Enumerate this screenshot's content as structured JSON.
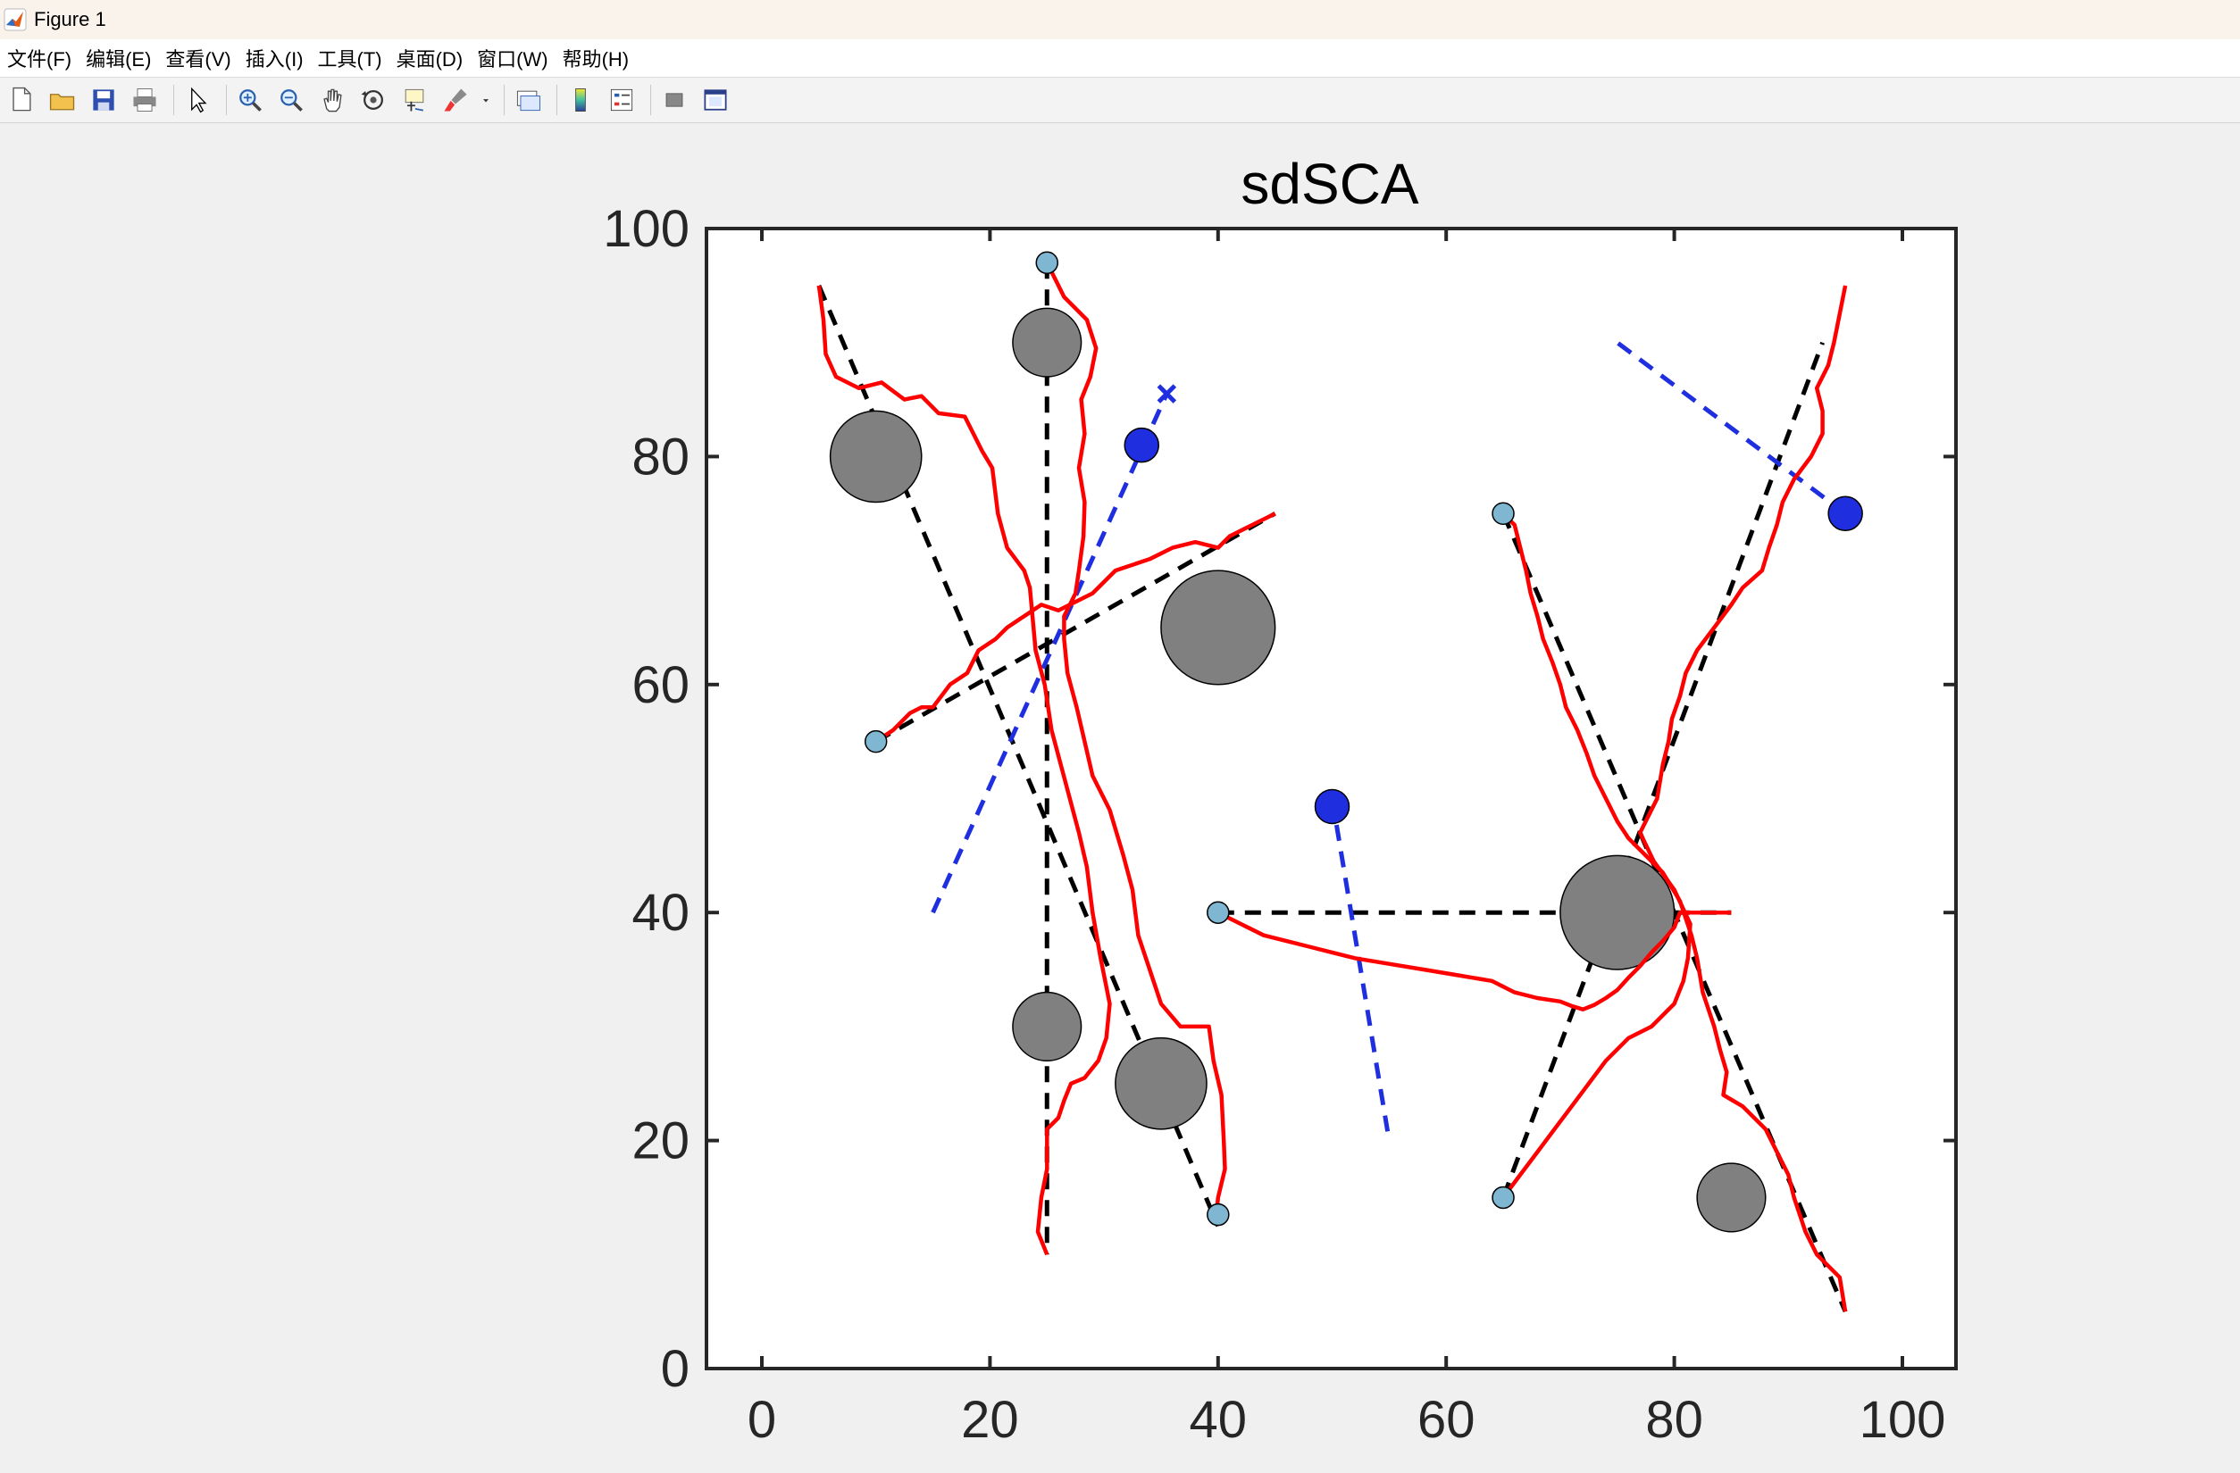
{
  "window": {
    "title": "Figure 1"
  },
  "menu": [
    "文件(F)",
    "编辑(E)",
    "查看(V)",
    "插入(I)",
    "工具(T)",
    "桌面(D)",
    "窗口(W)",
    "帮助(H)"
  ],
  "toolbar": [
    "new-figure-icon",
    "open-file-icon",
    "save-icon",
    "print-icon",
    "|",
    "select-arrow-icon",
    "|",
    "zoom-in-icon",
    "zoom-out-icon",
    "pan-hand-icon",
    "rotate-3d-icon",
    "data-cursor-icon",
    "brush-icon",
    "dropdown-arrow-icon",
    "|",
    "link-plot-icon",
    "|",
    "colorbar-icon",
    "legend-icon",
    "|",
    "hide-plot-tools-icon",
    "show-plot-tools-icon"
  ],
  "chart_data": {
    "type": "scatter",
    "title": "sdSCA",
    "xlabel": "",
    "ylabel": "",
    "xlim": [
      -5,
      105
    ],
    "ylim": [
      0,
      100
    ],
    "xticks": [
      0,
      20,
      40,
      60,
      80,
      100
    ],
    "yticks": [
      0,
      20,
      40,
      60,
      80,
      100
    ],
    "grid": false,
    "obstacles": [
      {
        "x": 10,
        "y": 80,
        "r": 4
      },
      {
        "x": 25,
        "y": 90,
        "r": 3
      },
      {
        "x": 40,
        "y": 65,
        "r": 5
      },
      {
        "x": 25,
        "y": 30,
        "r": 3
      },
      {
        "x": 35,
        "y": 25,
        "r": 4
      },
      {
        "x": 75,
        "y": 40,
        "r": 5
      },
      {
        "x": 85,
        "y": 15,
        "r": 3
      }
    ],
    "obstacle_color": "#808080",
    "start_points": [
      {
        "x": 25,
        "y": 97
      },
      {
        "x": 10,
        "y": 55
      },
      {
        "x": 40,
        "y": 40
      },
      {
        "x": 40,
        "y": 13.5
      },
      {
        "x": 65,
        "y": 75
      },
      {
        "x": 65,
        "y": 15
      }
    ],
    "start_color": "#7fb6d2",
    "moving_obstacles": [
      {
        "x": 33.3,
        "y": 81,
        "path": [
          [
            15,
            40
          ],
          [
            35.5,
            85.5
          ]
        ],
        "end_marker": "x"
      },
      {
        "x": 50,
        "y": 49.3,
        "path": [
          [
            50,
            50
          ],
          [
            55,
            20
          ]
        ]
      },
      {
        "x": 95,
        "y": 75,
        "path": [
          [
            95,
            75
          ],
          [
            75,
            90
          ]
        ]
      }
    ],
    "moving_color": "#1f2fe0",
    "reference_lines": [
      [
        [
          5,
          95
        ],
        [
          40,
          12.5
        ]
      ],
      [
        [
          25,
          97
        ],
        [
          25,
          10
        ]
      ],
      [
        [
          10,
          55
        ],
        [
          45,
          75
        ]
      ],
      [
        [
          40,
          40
        ],
        [
          85,
          40
        ]
      ],
      [
        [
          65,
          75
        ],
        [
          95,
          5
        ]
      ],
      [
        [
          65,
          15
        ],
        [
          93,
          90
        ]
      ]
    ],
    "reference_color": "#000000",
    "trajectories": [
      [
        [
          5,
          95
        ],
        [
          5.4,
          92
        ],
        [
          5.6,
          89
        ],
        [
          6.5,
          87
        ],
        [
          8.5,
          86
        ],
        [
          10.5,
          86.5
        ],
        [
          12.5,
          85
        ],
        [
          14,
          85.3
        ],
        [
          15.5,
          83.8
        ],
        [
          17.8,
          83.5
        ],
        [
          19.3,
          80.5
        ],
        [
          20.2,
          79
        ],
        [
          20.7,
          75
        ],
        [
          21.5,
          72
        ],
        [
          23,
          70
        ],
        [
          23.5,
          68.5
        ],
        [
          24,
          63
        ],
        [
          24.8,
          60
        ],
        [
          25.4,
          56
        ],
        [
          26.2,
          53
        ],
        [
          27,
          50
        ],
        [
          27.8,
          47
        ],
        [
          28.5,
          44
        ],
        [
          29,
          40
        ],
        [
          29.7,
          36
        ],
        [
          30.5,
          32
        ],
        [
          30.2,
          29
        ],
        [
          29.5,
          27
        ],
        [
          28.3,
          25.5
        ],
        [
          27.1,
          25
        ],
        [
          26.5,
          23.5
        ],
        [
          26,
          22
        ],
        [
          25,
          21
        ],
        [
          25,
          17.5
        ],
        [
          24.5,
          15
        ],
        [
          24.2,
          12
        ],
        [
          25,
          10
        ]
      ],
      [
        [
          25,
          97
        ],
        [
          26.5,
          94
        ],
        [
          28.5,
          92
        ],
        [
          29.3,
          89.5
        ],
        [
          28.8,
          87
        ],
        [
          28,
          85
        ],
        [
          28.3,
          82
        ],
        [
          27.8,
          79
        ],
        [
          28.3,
          76
        ],
        [
          28.2,
          73
        ],
        [
          27.8,
          70
        ],
        [
          27.5,
          68
        ],
        [
          26.5,
          66
        ],
        [
          26.5,
          64
        ],
        [
          26.8,
          61
        ],
        [
          27.6,
          58
        ],
        [
          28.3,
          55
        ],
        [
          29,
          52
        ],
        [
          30.5,
          49
        ],
        [
          31.7,
          45
        ],
        [
          32.5,
          42
        ],
        [
          33,
          38
        ],
        [
          34,
          35
        ],
        [
          35,
          32
        ],
        [
          36.7,
          30
        ],
        [
          39.2,
          30
        ],
        [
          39.6,
          27
        ],
        [
          40.3,
          24
        ],
        [
          40.5,
          20
        ],
        [
          40.6,
          17.5
        ],
        [
          40,
          15
        ],
        [
          39.9,
          14
        ]
      ],
      [
        [
          10,
          55
        ],
        [
          11.5,
          56
        ],
        [
          13,
          57.5
        ],
        [
          14,
          58
        ],
        [
          15,
          58
        ],
        [
          16.5,
          60
        ],
        [
          18,
          61
        ],
        [
          19,
          63
        ],
        [
          20.5,
          64
        ],
        [
          21.5,
          65
        ],
        [
          23,
          66
        ],
        [
          24.5,
          67
        ],
        [
          26,
          66.5
        ],
        [
          27,
          67
        ],
        [
          29,
          68
        ],
        [
          30,
          69
        ],
        [
          31,
          70
        ],
        [
          32.5,
          70.5
        ],
        [
          34,
          71
        ],
        [
          36,
          72
        ],
        [
          38,
          72.5
        ],
        [
          40,
          72
        ],
        [
          41,
          73
        ],
        [
          42,
          73.5
        ],
        [
          43,
          74
        ],
        [
          44,
          74.5
        ],
        [
          45,
          75
        ]
      ],
      [
        [
          40,
          40
        ],
        [
          42,
          39
        ],
        [
          44,
          38
        ],
        [
          46,
          37.5
        ],
        [
          48,
          37
        ],
        [
          50,
          36.5
        ],
        [
          52,
          36
        ],
        [
          55,
          35.5
        ],
        [
          58,
          35
        ],
        [
          61,
          34.5
        ],
        [
          64,
          34
        ],
        [
          66,
          33
        ],
        [
          68,
          32.5
        ],
        [
          70,
          32.2
        ],
        [
          71,
          31.8
        ],
        [
          72,
          31.5
        ],
        [
          73,
          31.9
        ],
        [
          74,
          32.5
        ],
        [
          75,
          33.2
        ],
        [
          76,
          34.3
        ],
        [
          77,
          35.3
        ],
        [
          78,
          36.5
        ],
        [
          79,
          37.5
        ],
        [
          80,
          38.7
        ],
        [
          80.5,
          40
        ],
        [
          82,
          40
        ],
        [
          83.5,
          40
        ],
        [
          85,
          40
        ]
      ],
      [
        [
          65,
          75
        ],
        [
          66,
          74
        ],
        [
          66.5,
          72
        ],
        [
          67,
          70
        ],
        [
          67.4,
          68
        ],
        [
          68,
          66
        ],
        [
          68.5,
          64
        ],
        [
          69.3,
          62
        ],
        [
          70,
          60
        ],
        [
          70.5,
          58
        ],
        [
          71.5,
          56
        ],
        [
          72.3,
          54
        ],
        [
          73,
          52
        ],
        [
          74,
          50
        ],
        [
          75,
          48
        ],
        [
          76,
          46.5
        ],
        [
          77.5,
          45
        ],
        [
          79,
          43.5
        ],
        [
          80.5,
          41
        ],
        [
          81.5,
          38
        ],
        [
          82,
          36
        ],
        [
          82.5,
          33
        ],
        [
          83.5,
          30
        ],
        [
          84,
          28
        ],
        [
          84.6,
          26
        ],
        [
          84.3,
          24
        ],
        [
          86,
          23
        ],
        [
          88,
          21
        ],
        [
          89,
          19
        ],
        [
          90,
          17
        ],
        [
          90.5,
          15
        ],
        [
          91.5,
          12
        ],
        [
          92.5,
          10
        ],
        [
          94.5,
          8
        ],
        [
          95,
          5
        ]
      ],
      [
        [
          65,
          15
        ],
        [
          66.5,
          17
        ],
        [
          68,
          19
        ],
        [
          69.5,
          21
        ],
        [
          71,
          23
        ],
        [
          72.5,
          25
        ],
        [
          74,
          27
        ],
        [
          76,
          29
        ],
        [
          78,
          30
        ],
        [
          80,
          32
        ],
        [
          80.8,
          34
        ],
        [
          81.2,
          36
        ],
        [
          81.4,
          39
        ],
        [
          80,
          42
        ],
        [
          78.2,
          44.5
        ],
        [
          77,
          47
        ],
        [
          78.5,
          50
        ],
        [
          79,
          53
        ],
        [
          79.5,
          55
        ],
        [
          79.8,
          57
        ],
        [
          80.5,
          59
        ],
        [
          81,
          61
        ],
        [
          82,
          63
        ],
        [
          83.5,
          65
        ],
        [
          85,
          67
        ],
        [
          86,
          68.5
        ],
        [
          87.7,
          70
        ],
        [
          88.3,
          72
        ],
        [
          89,
          74
        ],
        [
          89.5,
          76
        ],
        [
          90.5,
          78
        ],
        [
          92,
          80
        ],
        [
          93,
          82
        ],
        [
          93,
          84
        ],
        [
          92.5,
          86
        ],
        [
          93.5,
          88
        ],
        [
          94,
          90
        ],
        [
          94.4,
          92
        ],
        [
          95,
          95
        ]
      ]
    ],
    "trajectory_color": "#ff0000"
  }
}
